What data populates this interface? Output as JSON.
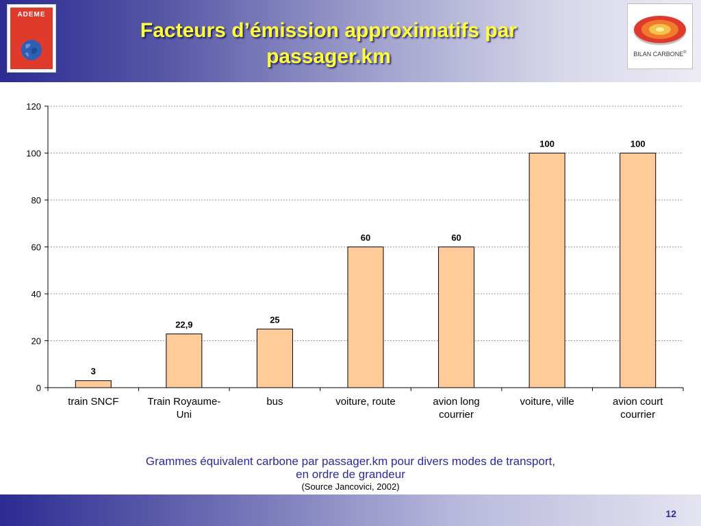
{
  "header": {
    "title_line1": "Facteurs d’émission approximatifs par",
    "title_line2": "passager.km",
    "left_logo_text": "ADEME",
    "right_logo_text": "BILAN CARBONE",
    "right_logo_mark": "®"
  },
  "colors": {
    "bar_fill": "#ffcc99",
    "title": "#ffff3c",
    "caption": "#2a2a9a"
  },
  "chart_data": {
    "type": "bar",
    "categories": [
      [
        "train SNCF"
      ],
      [
        "Train Royaume-",
        "Uni"
      ],
      [
        "bus"
      ],
      [
        "voiture, route"
      ],
      [
        "avion long",
        "courrier"
      ],
      [
        "voiture, ville"
      ],
      [
        "avion court",
        "courrier"
      ]
    ],
    "values": [
      3,
      22.9,
      25,
      60,
      60,
      100,
      100
    ],
    "data_labels": [
      "3",
      "22,9",
      "25",
      "60",
      "60",
      "100",
      "100"
    ],
    "ylim": [
      0,
      120
    ],
    "yticks": [
      0,
      20,
      40,
      60,
      80,
      100,
      120
    ],
    "grid": true,
    "legend": "none"
  },
  "caption": {
    "line1": "Grammes équivalent carbone par passager.km pour divers modes de transport,",
    "line2": "en ordre de grandeur",
    "source": "(Source Jancovici, 2002)"
  },
  "footer": {
    "page_number": "12"
  }
}
